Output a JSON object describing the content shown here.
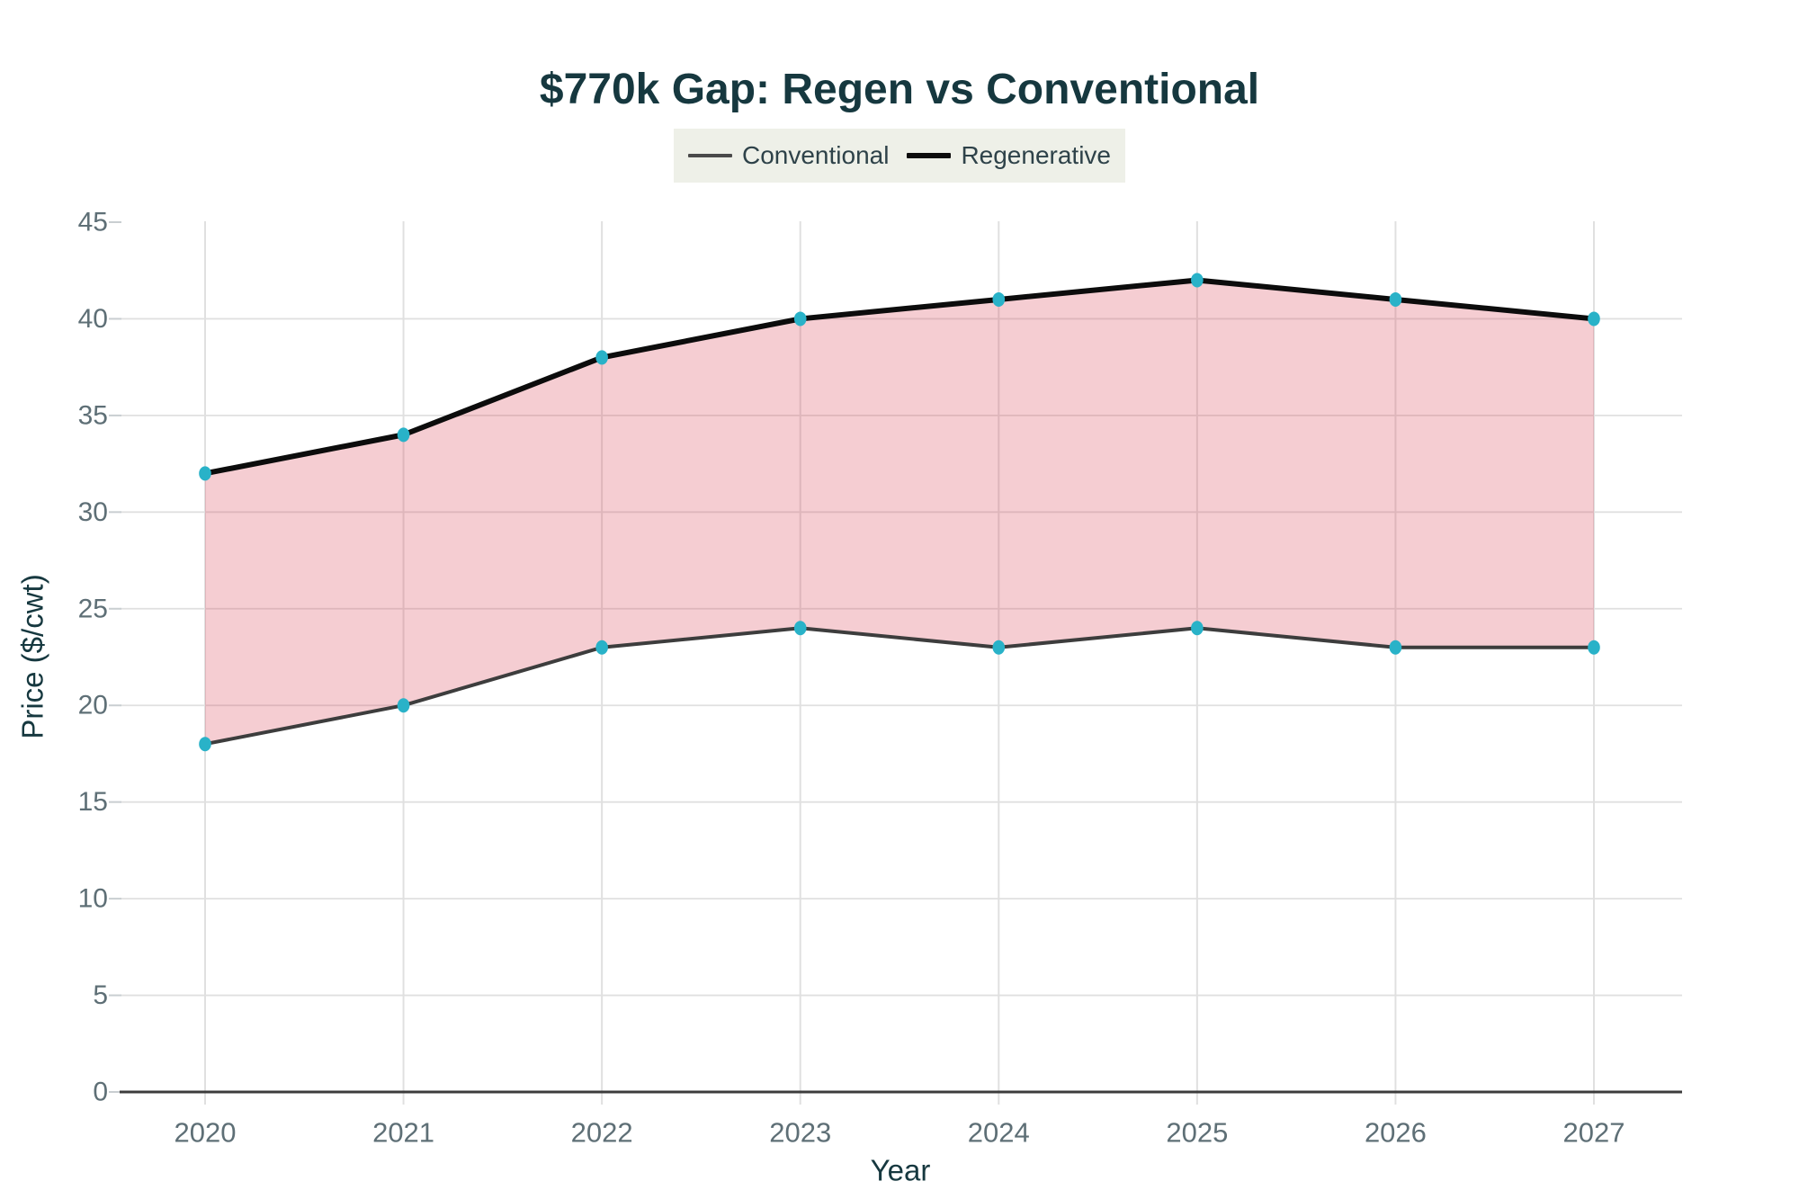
{
  "title": "$770k Gap: Regen vs Conventional",
  "chart_data": {
    "type": "line",
    "title": "$770k Gap: Regen vs Conventional",
    "xlabel": "Year",
    "ylabel": "Price ($/cwt)",
    "x": [
      2020,
      2021,
      2022,
      2023,
      2024,
      2025,
      2026,
      2027
    ],
    "series": [
      {
        "name": "Conventional",
        "color": "#3d3d3d",
        "line_width": 4,
        "values": [
          18,
          20,
          23,
          24,
          23,
          24,
          23,
          23
        ]
      },
      {
        "name": "Regenerative",
        "color": "#0c0c0c",
        "line_width": 6,
        "values": [
          32,
          34,
          38,
          40,
          41,
          42,
          41,
          40
        ]
      }
    ],
    "gap_fill_color": "rgba(214,56,74,0.25)",
    "marker": {
      "color": "#29b2c8",
      "shape": "ellipse"
    },
    "ylim": [
      0,
      45
    ],
    "yticks": [
      0,
      5,
      10,
      15,
      20,
      25,
      30,
      35,
      40,
      45
    ],
    "grid": true,
    "legend_position": "top-center",
    "legend_background": "#eef0e8",
    "style": {
      "grid_color": "#e0e0e0",
      "tick_color": "#c9ced1",
      "axis_line_color": "#3c3c3c",
      "tick_label_color": "#5e6f76",
      "axis_title_color": "#16383f",
      "title_color": "#16383f",
      "background": "#ffffff"
    }
  }
}
